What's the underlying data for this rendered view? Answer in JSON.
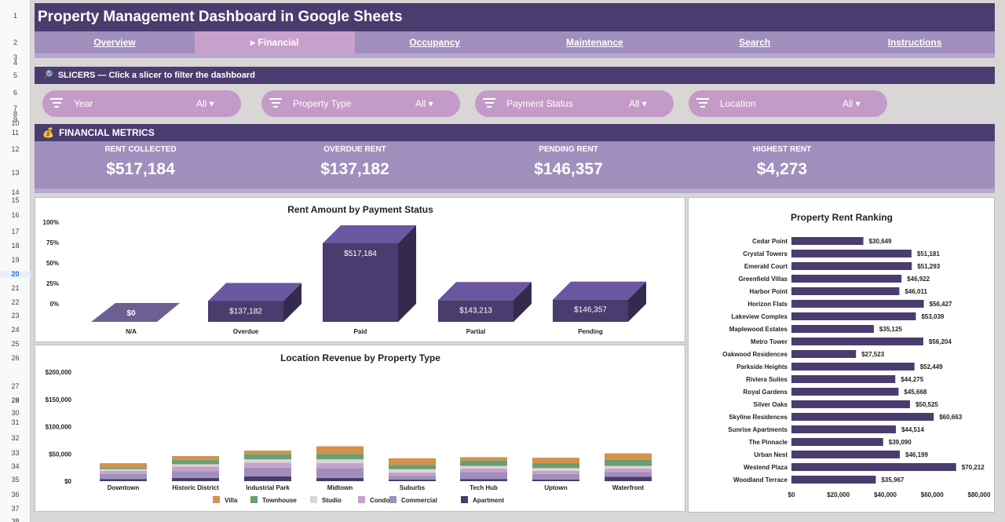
{
  "row_numbers": [
    {
      "n": "1",
      "y": 16
    },
    {
      "n": "2",
      "y": 50
    },
    {
      "n": "3",
      "y": 69
    },
    {
      "n": "4",
      "y": 76
    },
    {
      "n": "5",
      "y": 92
    },
    {
      "n": "6",
      "y": 114
    },
    {
      "n": "7",
      "y": 134
    },
    {
      "n": "8",
      "y": 141
    },
    {
      "n": "9",
      "y": 148
    },
    {
      "n": "10",
      "y": 153
    },
    {
      "n": "11",
      "y": 165
    },
    {
      "n": "12",
      "y": 186
    },
    {
      "n": "13",
      "y": 216
    },
    {
      "n": "14",
      "y": 241
    },
    {
      "n": "15",
      "y": 251
    },
    {
      "n": "16",
      "y": 270
    },
    {
      "n": "17",
      "y": 291
    },
    {
      "n": "18",
      "y": 309
    },
    {
      "n": "19",
      "y": 327
    },
    {
      "n": "20",
      "y": 345
    },
    {
      "n": "21",
      "y": 363
    },
    {
      "n": "22",
      "y": 381
    },
    {
      "n": "23",
      "y": 398
    },
    {
      "n": "24",
      "y": 416
    },
    {
      "n": "25",
      "y": 434
    },
    {
      "n": "26",
      "y": 452
    },
    {
      "n": "27",
      "y": 488
    },
    {
      "n": "28",
      "y": 506
    },
    {
      "n": "29",
      "y": 506
    },
    {
      "n": "30",
      "y": 522
    },
    {
      "n": "31",
      "y": 534
    },
    {
      "n": "32",
      "y": 554
    },
    {
      "n": "33",
      "y": 573
    },
    {
      "n": "34",
      "y": 590
    },
    {
      "n": "35",
      "y": 607
    },
    {
      "n": "36",
      "y": 626
    },
    {
      "n": "37",
      "y": 644
    },
    {
      "n": "38",
      "y": 660
    }
  ],
  "selected_row": "20",
  "title": "Property Management Dashboard in Google Sheets",
  "nav": {
    "tabs": [
      "Overview",
      "▸ Financial",
      "Occupancy",
      "Maintenance",
      "Search",
      "Instructions"
    ],
    "active_index": 1
  },
  "slicers_header": "SLICERS — Click a slicer to filter the dashboard",
  "slicers": [
    {
      "label": "Year",
      "value": "All ▾"
    },
    {
      "label": "Property Type",
      "value": "All ▾"
    },
    {
      "label": "Payment Status",
      "value": "All ▾"
    },
    {
      "label": "Location",
      "value": "All ▾"
    }
  ],
  "financial_header": "FINANCIAL METRICS",
  "metrics": [
    {
      "label": "RENT COLLECTED",
      "value": "$517,184"
    },
    {
      "label": "OVERDUE RENT",
      "value": "$137,182"
    },
    {
      "label": "PENDING RENT",
      "value": "$146,357"
    },
    {
      "label": "HIGHEST RENT",
      "value": "$4,273"
    }
  ],
  "colors": {
    "dark_purple": "#4a3c6e",
    "mid_purple": "#a08fbc",
    "slicer_pink": "#c49bc8",
    "bar_purple": "#4a3c6e"
  },
  "chart_data": [
    {
      "type": "bar",
      "title": "Rent Amount by Payment Status",
      "categories": [
        "N/A",
        "Overdue",
        "Paid",
        "Partial",
        "Pending"
      ],
      "values": [
        0,
        137182,
        517184,
        143213,
        146357
      ],
      "data_labels": [
        "$0",
        "$137,182",
        "$517,184",
        "$143,213",
        "$146,357"
      ],
      "y_ticks": [
        "100%",
        "75%",
        "50%",
        "25%",
        "0%"
      ]
    },
    {
      "type": "bar",
      "title": "Location Revenue by Property Type",
      "categories": [
        "Downtown",
        "Historic District",
        "Industrial Park",
        "Midtown",
        "Suburbs",
        "Tech Hub",
        "Uptown",
        "Waterfront"
      ],
      "series": [
        {
          "name": "Apartment",
          "color": "#4a3c6e",
          "values": [
            4000,
            6000,
            9000,
            6000,
            3000,
            4000,
            3000,
            8000
          ]
        },
        {
          "name": "Commercial",
          "color": "#a08fbc",
          "values": [
            9000,
            12000,
            16000,
            18000,
            7000,
            13000,
            10000,
            9000
          ]
        },
        {
          "name": "Condo",
          "color": "#c9a0cc",
          "values": [
            6000,
            9000,
            9000,
            9000,
            6000,
            6000,
            6000,
            6000
          ]
        },
        {
          "name": "Studio",
          "color": "#dcd6d6",
          "values": [
            3000,
            4000,
            6000,
            7000,
            6000,
            5000,
            5000,
            5000
          ]
        },
        {
          "name": "Townhouse",
          "color": "#6a9e73",
          "values": [
            3000,
            8000,
            10000,
            10000,
            8000,
            10000,
            9000,
            11000
          ]
        },
        {
          "name": "Villa",
          "color": "#d4924a",
          "values": [
            8000,
            7000,
            6000,
            14000,
            12000,
            6000,
            10000,
            12000
          ]
        }
      ],
      "y_ticks": [
        "$200,000",
        "$150,000",
        "$100,000",
        "$50,000",
        "$0"
      ],
      "ylim": [
        0,
        200000
      ],
      "stacked": true
    },
    {
      "type": "bar",
      "orientation": "horizontal",
      "title": "Property Rent Ranking",
      "categories": [
        "Cedar Point",
        "Crystal Towers",
        "Emerald Court",
        "Greenfield Villas",
        "Harbor Point",
        "Horizon Flats",
        "Lakeview Complex",
        "Maplewood Estates",
        "Metro Tower",
        "Oakwood Residences",
        "Parkside Heights",
        "Riviera Suites",
        "Royal Gardens",
        "Silver Oaks",
        "Skyline Residences",
        "Sunrise Apartments",
        "The Pinnacle",
        "Urban Nest",
        "Westend Plaza",
        "Woodland Terrace"
      ],
      "values": [
        30649,
        51181,
        51293,
        46922,
        46011,
        56427,
        53039,
        35125,
        56204,
        27523,
        52449,
        44275,
        45668,
        50525,
        60663,
        44514,
        39090,
        46199,
        70212,
        35967
      ],
      "data_labels": [
        "$30,649",
        "$51,181",
        "$51,293",
        "$46,922",
        "$46,011",
        "$56,427",
        "$53,039",
        "$35,125",
        "$56,204",
        "$27,523",
        "$52,449",
        "$44,275",
        "$45,668",
        "$50,525",
        "$60,663",
        "$44,514",
        "$39,090",
        "$46,199",
        "$70,212",
        "$35,967"
      ],
      "x_ticks": [
        "$0",
        "$20,000",
        "$40,000",
        "$60,000",
        "$80,000"
      ],
      "xlim": [
        0,
        80000
      ]
    }
  ]
}
